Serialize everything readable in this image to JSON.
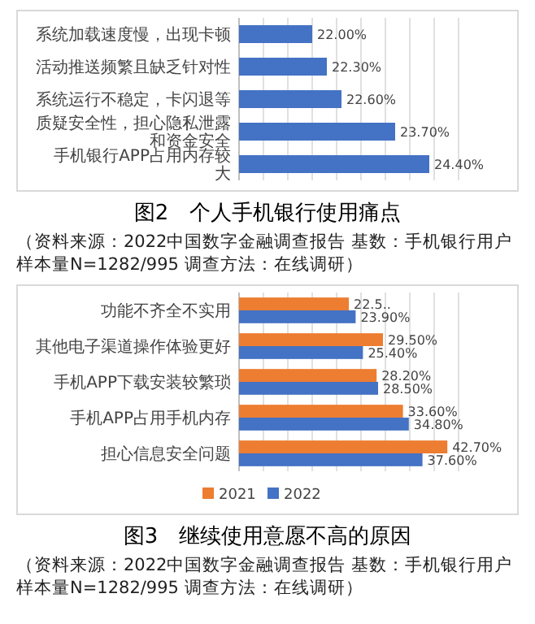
{
  "chart_data": [
    {
      "type": "bar",
      "orientation": "horizontal",
      "title": "图2　个人手机银行使用痛点",
      "annotations": [
        "（资料来源：2022中国数字金融调查报告 基数：手机银行用户样本量N=1282/995 调查方法：在线调研）"
      ],
      "categories": [
        "系统加载速度慢，出现卡顿",
        "活动推送频繁且缺乏针对性",
        "系统运行不稳定，卡闪退等",
        "质疑安全性，担心隐私泄露和资金安全",
        "手机银行APP占用内存较大"
      ],
      "values": [
        22.0,
        22.3,
        22.6,
        23.7,
        24.4
      ],
      "value_labels": [
        "22.00%",
        "22.30%",
        "22.60%",
        "23.70%",
        "24.40%"
      ],
      "color": "#4472c4",
      "xlim": [
        20.5,
        25
      ],
      "xticks": [
        {
          "value": 20.5,
          "label": null
        },
        {
          "value": 21,
          "label": null
        },
        {
          "value": 21.5,
          "label": null
        },
        {
          "value": 22,
          "label": null
        },
        {
          "value": 22.5,
          "label": null
        },
        {
          "value": 23,
          "label": null
        },
        {
          "value": 23.5,
          "label": null
        },
        {
          "value": 24,
          "label": null
        },
        {
          "value": 24.5,
          "label": null
        },
        {
          "value": 25,
          "label": null
        }
      ],
      "grid": "x",
      "tick_labels": "y"
    },
    {
      "type": "bar",
      "orientation": "horizontal",
      "title": "图3　继续使用意愿不高的原因",
      "annotations": [
        "（资料来源：2022中国数字金融调查报告 基数：手机银行用户样本量N=1282/995 调查方法：在线调研）"
      ],
      "categories": [
        "功能不齐全不实用",
        "其他电子渠道操作体验更好",
        "手机APP下载安装较繁琐",
        "手机APP占用手机内存",
        "担心信息安全问题"
      ],
      "series": [
        {
          "name": "2021",
          "color": "#ed7d31",
          "values": [
            22.5,
            29.5,
            28.2,
            33.6,
            42.7
          ],
          "value_labels": [
            "22.5..",
            "29.50%",
            "28.20%",
            "33.60%",
            "42.70%"
          ]
        },
        {
          "name": "2022",
          "color": "#4472c4",
          "values": [
            23.9,
            25.4,
            28.5,
            34.8,
            37.6
          ],
          "value_labels": [
            "23.90%",
            "25.40%",
            "28.50%",
            "34.80%",
            "37.60%"
          ]
        }
      ],
      "xlim": [
        0,
        45
      ],
      "xticks": [
        {
          "value": 0,
          "label": null
        },
        {
          "value": 5,
          "label": null
        },
        {
          "value": 10,
          "label": null
        },
        {
          "value": 15,
          "label": null
        },
        {
          "value": 20,
          "label": null
        },
        {
          "value": 25,
          "label": null
        },
        {
          "value": 30,
          "label": null
        },
        {
          "value": 35,
          "label": null
        },
        {
          "value": 40,
          "label": null
        },
        {
          "value": 45,
          "label": null
        }
      ],
      "grid": "x",
      "tick_labels": "y",
      "legend": "bottom"
    }
  ]
}
